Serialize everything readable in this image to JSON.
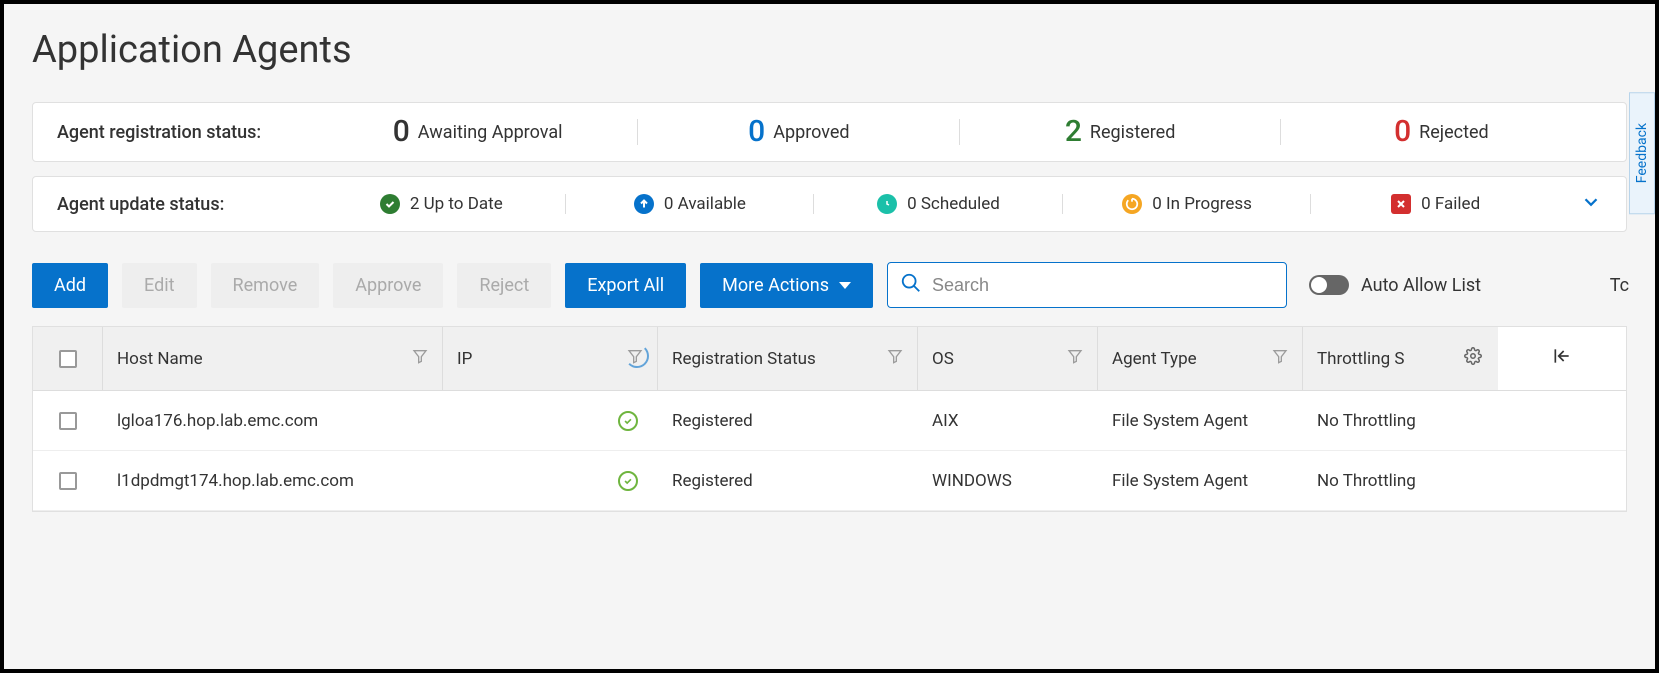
{
  "page_title": "Application Agents",
  "feedback_label": "Feedback",
  "registration_panel": {
    "label": "Agent registration status:",
    "items": [
      {
        "count": "0",
        "label": "Awaiting Approval",
        "color": "#333333"
      },
      {
        "count": "0",
        "label": "Approved",
        "color": "#0672cb"
      },
      {
        "count": "2",
        "label": "Registered",
        "color": "#2e7d32"
      },
      {
        "count": "0",
        "label": "Rejected",
        "color": "#d32f2f"
      }
    ]
  },
  "update_panel": {
    "label": "Agent update status:",
    "items": [
      {
        "count": "2",
        "label": "Up to Date",
        "icon": "check-circle",
        "icon_bg": "#2e7d32",
        "icon_fg": "#ffffff",
        "shape": "circle"
      },
      {
        "count": "0",
        "label": "Available",
        "icon": "arrow-up-circle",
        "icon_bg": "#0672cb",
        "icon_fg": "#ffffff",
        "shape": "circle"
      },
      {
        "count": "0",
        "label": "Scheduled",
        "icon": "clock-circle",
        "icon_bg": "#1bc0a9",
        "icon_fg": "#ffffff",
        "shape": "circle"
      },
      {
        "count": "0",
        "label": "In Progress",
        "icon": "progress-circle",
        "icon_bg": "#f5a623",
        "icon_fg": "#ffffff",
        "shape": "circle"
      },
      {
        "count": "0",
        "label": "Failed",
        "icon": "x-square",
        "icon_bg": "#d32f2f",
        "icon_fg": "#ffffff",
        "shape": "square"
      }
    ]
  },
  "toolbar": {
    "add": "Add",
    "edit": "Edit",
    "remove": "Remove",
    "approve": "Approve",
    "reject": "Reject",
    "export_all": "Export All",
    "more_actions": "More Actions",
    "search_placeholder": "Search",
    "auto_allow": "Auto Allow List",
    "auto_allow_on": false,
    "truncated_right": "Tc"
  },
  "table": {
    "columns": {
      "host": "Host Name",
      "ip": "IP",
      "reg": "Registration Status",
      "os": "OS",
      "type": "Agent Type",
      "thr": "Throttling S"
    },
    "rows": [
      {
        "host": "lgloa176.hop.lab.emc.com",
        "ip_ok": true,
        "reg": "Registered",
        "os": "AIX",
        "type": "File System Agent",
        "thr": "No Throttling"
      },
      {
        "host": "l1dpdmgt174.hop.lab.emc.com",
        "ip_ok": true,
        "reg": "Registered",
        "os": "WINDOWS",
        "type": "File System Agent",
        "thr": "No Throttling"
      }
    ]
  },
  "colors": {
    "primary": "#0672cb",
    "page_bg": "#f5f5f5",
    "panel_bg": "#ffffff",
    "border": "#e0e0e0",
    "header_bg": "#f0f0f0",
    "disabled_bg": "#eeeeee",
    "disabled_fg": "#aaaaaa"
  }
}
